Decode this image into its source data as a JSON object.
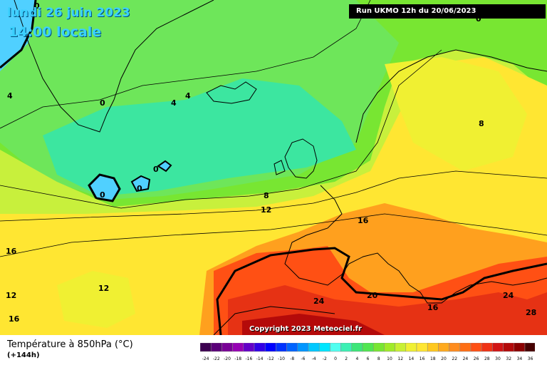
{
  "header": {
    "date_line": "lundi 26 juin 2023",
    "time_line": "14:00 locale",
    "run_info": "Run UKMO 12h du 20/06/2023"
  },
  "footer": {
    "copyright": "Copyright 2023 Meteociel.fr",
    "variable": "Température à 850hPa (°C)",
    "lead_time": "(+144h)"
  },
  "colors": {
    "very_cold": "#50d0ff",
    "cold": "#3ce6b4",
    "cool": "#6ee65a",
    "mild": "#c8f03c",
    "warm": "#ffe632",
    "hot": "#ffa01e",
    "very_hot": "#ff5014",
    "extreme": "#d21414"
  },
  "isotherm_labels": [
    "0",
    "4",
    "0",
    "4",
    "4",
    "8",
    "0",
    "0",
    "0",
    "0",
    "8",
    "12",
    "16",
    "16",
    "12",
    "12",
    "16",
    "24",
    "20",
    "16",
    "24",
    "28",
    "8",
    "4",
    "0"
  ],
  "scale": {
    "ticks": [
      "-24",
      "-22",
      "-20",
      "-18",
      "-16",
      "-14",
      "-12",
      "-10",
      "-8",
      "-6",
      "-4",
      "-2",
      "0",
      "2",
      "4",
      "6",
      "8",
      "10",
      "12",
      "14",
      "16",
      "18",
      "20",
      "22",
      "24",
      "26",
      "28",
      "30",
      "32",
      "34",
      "36"
    ],
    "colors": [
      "#3c0050",
      "#5a0078",
      "#780096",
      "#9600b4",
      "#6400c8",
      "#3200e6",
      "#0000ff",
      "#0032ff",
      "#0064ff",
      "#0096ff",
      "#00c8ff",
      "#00e6ff",
      "#50fff0",
      "#3cf0b4",
      "#3ce678",
      "#50e650",
      "#78e632",
      "#a0eb28",
      "#c8f032",
      "#f0f032",
      "#ffe632",
      "#ffc81e",
      "#ffaa1e",
      "#ff8c1e",
      "#ff6e14",
      "#ff5014",
      "#f03214",
      "#d21414",
      "#b40a0a",
      "#8c0000",
      "#460000"
    ]
  }
}
